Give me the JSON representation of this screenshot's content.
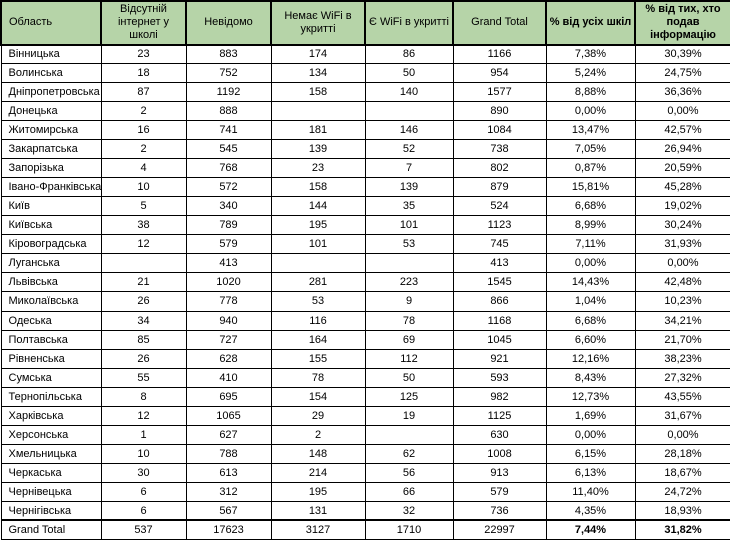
{
  "colors": {
    "header_bg": "#b6d4a8",
    "border": "#000000"
  },
  "chart_data": {
    "type": "table",
    "title": "",
    "columns": [
      "Область",
      "Відсутній інтернет у школі",
      "Невідомо",
      "Немає WiFi в укритті",
      "Є WiFi в укритті",
      "Grand Total",
      "% від усіх шкіл",
      "% від тих, хто подав інформацію"
    ],
    "rows": [
      [
        "Вінницька",
        "23",
        "883",
        "174",
        "86",
        "1166",
        "7,38%",
        "30,39%"
      ],
      [
        "Волинська",
        "18",
        "752",
        "134",
        "50",
        "954",
        "5,24%",
        "24,75%"
      ],
      [
        "Дніпропетровська",
        "87",
        "1192",
        "158",
        "140",
        "1577",
        "8,88%",
        "36,36%"
      ],
      [
        "Донецька",
        "2",
        "888",
        "",
        "",
        "890",
        "0,00%",
        "0,00%"
      ],
      [
        "Житомирська",
        "16",
        "741",
        "181",
        "146",
        "1084",
        "13,47%",
        "42,57%"
      ],
      [
        "Закарпатська",
        "2",
        "545",
        "139",
        "52",
        "738",
        "7,05%",
        "26,94%"
      ],
      [
        "Запорізька",
        "4",
        "768",
        "23",
        "7",
        "802",
        "0,87%",
        "20,59%"
      ],
      [
        "Івано-Франківська",
        "10",
        "572",
        "158",
        "139",
        "879",
        "15,81%",
        "45,28%"
      ],
      [
        "Київ",
        "5",
        "340",
        "144",
        "35",
        "524",
        "6,68%",
        "19,02%"
      ],
      [
        "Київська",
        "38",
        "789",
        "195",
        "101",
        "1123",
        "8,99%",
        "30,24%"
      ],
      [
        "Кіровоградська",
        "12",
        "579",
        "101",
        "53",
        "745",
        "7,11%",
        "31,93%"
      ],
      [
        "Луганська",
        "",
        "413",
        "",
        "",
        "413",
        "0,00%",
        "0,00%"
      ],
      [
        "Львівська",
        "21",
        "1020",
        "281",
        "223",
        "1545",
        "14,43%",
        "42,48%"
      ],
      [
        "Миколаївська",
        "26",
        "778",
        "53",
        "9",
        "866",
        "1,04%",
        "10,23%"
      ],
      [
        "Одеська",
        "34",
        "940",
        "116",
        "78",
        "1168",
        "6,68%",
        "34,21%"
      ],
      [
        "Полтавська",
        "85",
        "727",
        "164",
        "69",
        "1045",
        "6,60%",
        "21,70%"
      ],
      [
        "Рівненська",
        "26",
        "628",
        "155",
        "112",
        "921",
        "12,16%",
        "38,23%"
      ],
      [
        "Сумська",
        "55",
        "410",
        "78",
        "50",
        "593",
        "8,43%",
        "27,32%"
      ],
      [
        "Тернопільська",
        "8",
        "695",
        "154",
        "125",
        "982",
        "12,73%",
        "43,55%"
      ],
      [
        "Харківська",
        "12",
        "1065",
        "29",
        "19",
        "1125",
        "1,69%",
        "31,67%"
      ],
      [
        "Херсонська",
        "1",
        "627",
        "2",
        "",
        "630",
        "0,00%",
        "0,00%"
      ],
      [
        "Хмельницька",
        "10",
        "788",
        "148",
        "62",
        "1008",
        "6,15%",
        "28,18%"
      ],
      [
        "Черкаська",
        "30",
        "613",
        "214",
        "56",
        "913",
        "6,13%",
        "18,67%"
      ],
      [
        "Чернівецька",
        "6",
        "312",
        "195",
        "66",
        "579",
        "11,40%",
        "24,72%"
      ],
      [
        "Чернігівська",
        "6",
        "567",
        "131",
        "32",
        "736",
        "4,35%",
        "18,93%"
      ]
    ],
    "grand_total": [
      "Grand Total",
      "537",
      "17623",
      "3127",
      "1710",
      "22997",
      "7,44%",
      "31,82%"
    ]
  }
}
